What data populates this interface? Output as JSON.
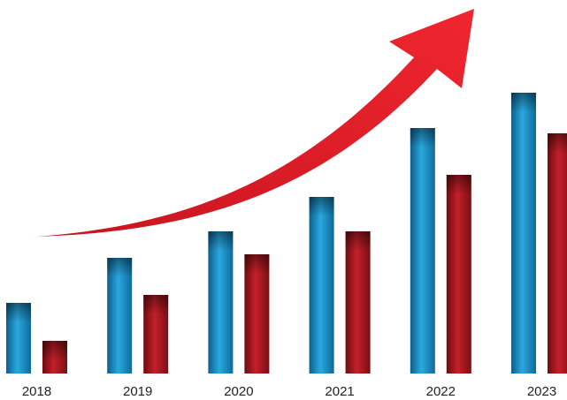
{
  "chart_data": {
    "type": "bar",
    "categories": [
      "2018",
      "2019",
      "2020",
      "2021",
      "2022",
      "2023"
    ],
    "series": [
      {
        "values": [
          80,
          131,
          161,
          200,
          278,
          318
        ],
        "color": "#1b8fc7"
      },
      {
        "values": [
          37,
          89,
          135,
          161,
          225,
          272
        ],
        "color": "#a3161c"
      }
    ],
    "ylim": [
      0,
      330
    ],
    "grid": false,
    "legend": "none",
    "annotations": [
      {
        "type": "trend-arrow",
        "direction": "up-right",
        "color": "#e8202c"
      }
    ]
  }
}
